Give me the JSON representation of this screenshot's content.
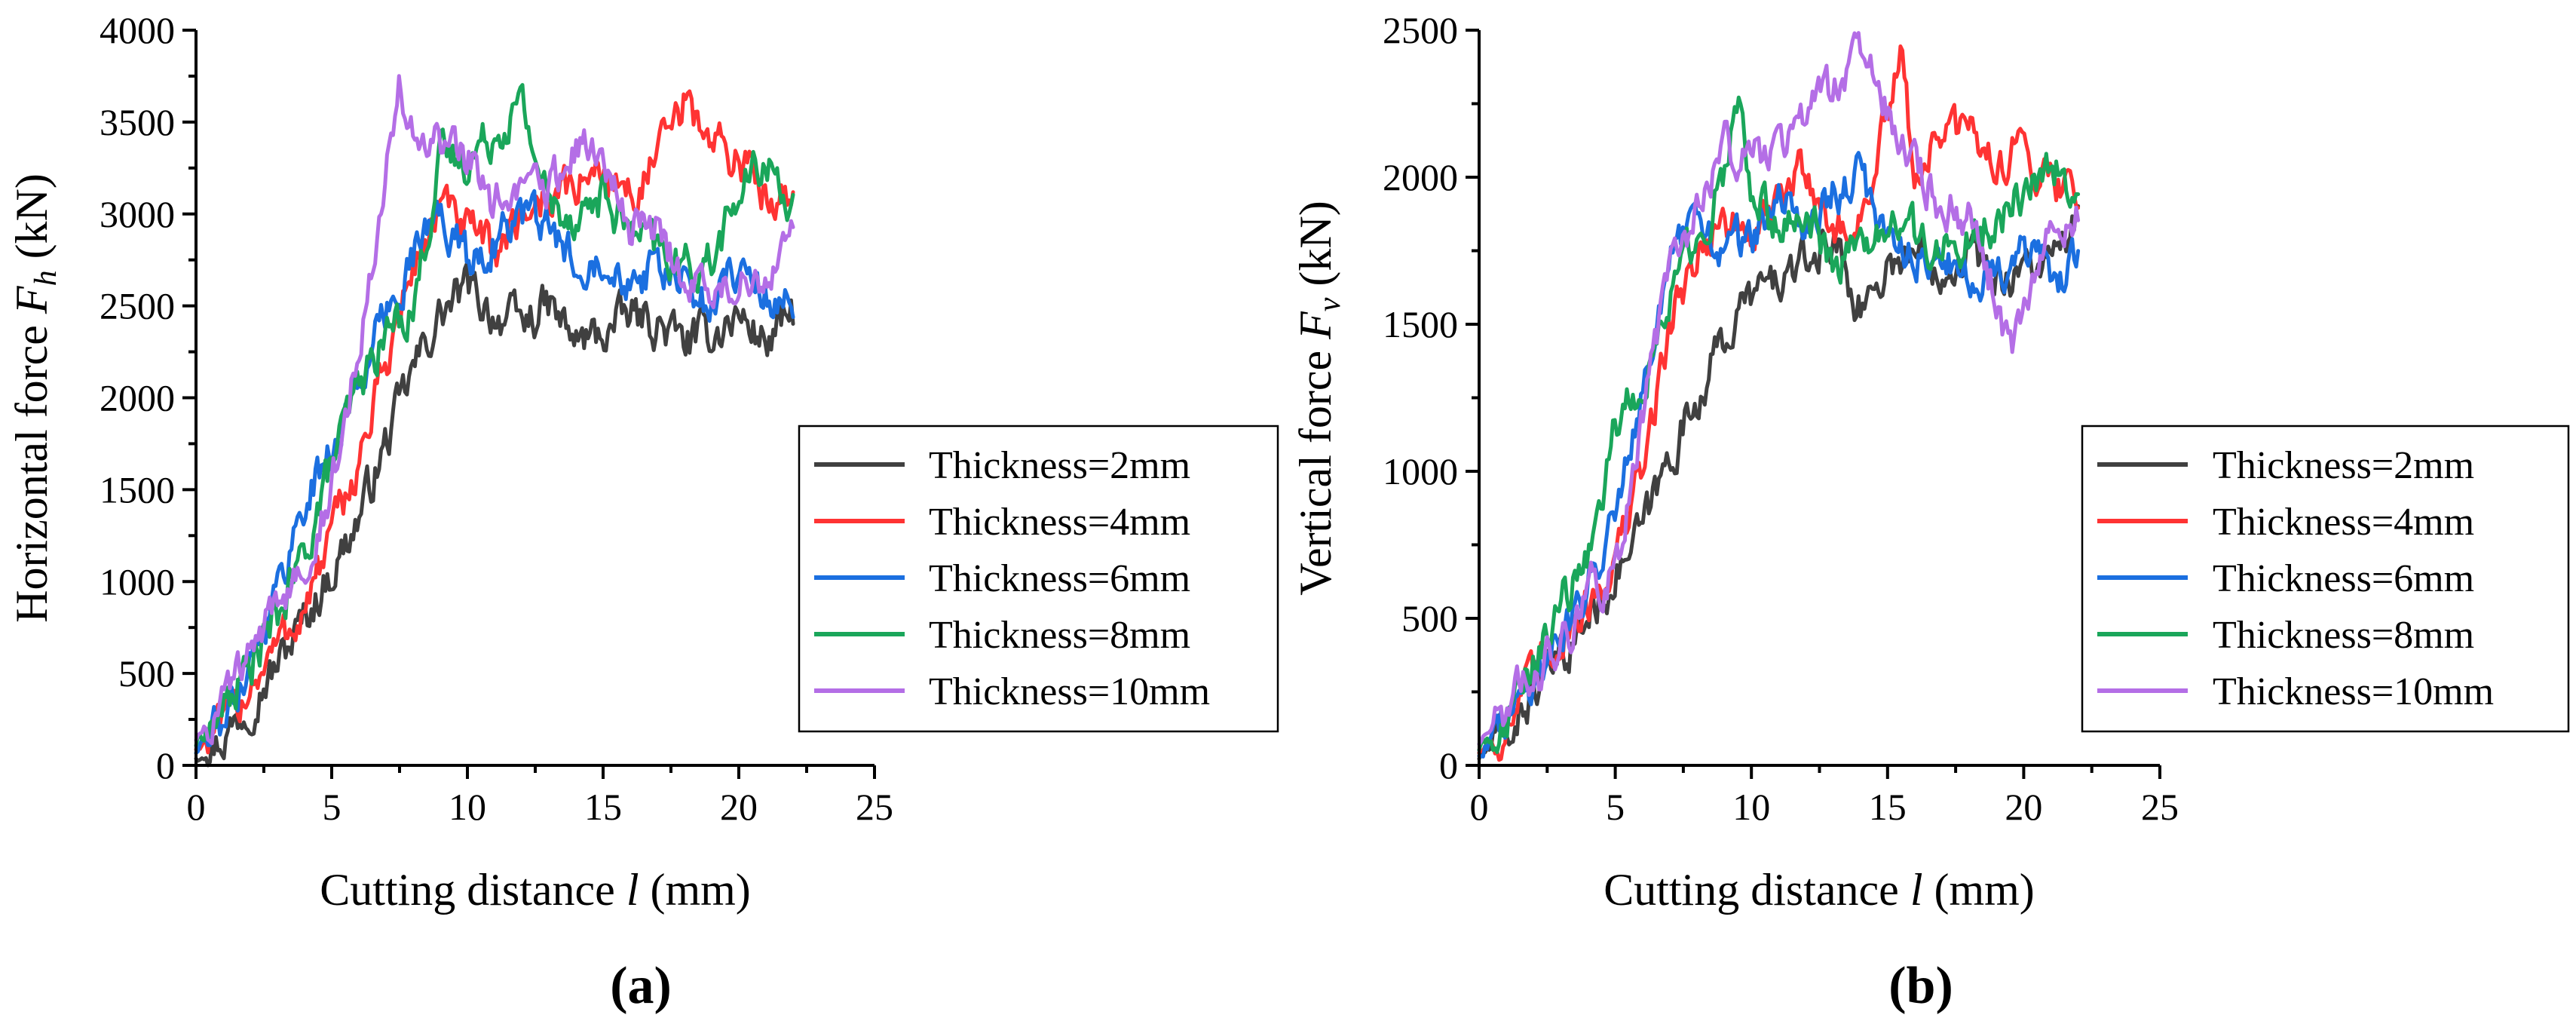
{
  "chart_data": [
    {
      "type": "line",
      "panel_label": "(a)",
      "xlabel": "Cutting distance l (mm)",
      "xlabel_parts": [
        "Cutting distance ",
        "l",
        " (mm)"
      ],
      "ylabel": "Horizontal force F_h (kN)",
      "ylabel_parts": [
        "Horizontal force ",
        "F",
        "h",
        " (kN)"
      ],
      "xlim": [
        0,
        25
      ],
      "ylim": [
        0,
        4000
      ],
      "xticks": [
        0,
        5,
        10,
        15,
        20,
        25
      ],
      "yticks": [
        0,
        500,
        1000,
        1500,
        2000,
        2500,
        3000,
        3500,
        4000
      ],
      "legend_position": "center-right",
      "series": [
        {
          "name": "Thickness=2mm",
          "color": "#404040",
          "x": [
            0,
            1,
            2,
            3,
            4,
            5,
            6,
            7,
            8,
            9,
            10,
            11,
            12,
            13,
            14,
            15,
            16,
            17,
            18,
            19,
            20,
            21,
            22
          ],
          "y": [
            50,
            150,
            350,
            550,
            800,
            1050,
            1350,
            1750,
            2150,
            2450,
            2600,
            2450,
            2400,
            2500,
            2300,
            2350,
            2450,
            2400,
            2300,
            2350,
            2450,
            2300,
            2450
          ]
        },
        {
          "name": "Thickness=4mm",
          "color": "#ff3333",
          "x": [
            0,
            1,
            2,
            3,
            4,
            5,
            6,
            7,
            8,
            9,
            10,
            11,
            12,
            13,
            14,
            15,
            16,
            17,
            18,
            19,
            20,
            21,
            22
          ],
          "y": [
            100,
            200,
            450,
            650,
            850,
            1250,
            1650,
            2200,
            2700,
            3050,
            2900,
            2800,
            3000,
            3100,
            3150,
            3250,
            3100,
            3300,
            3600,
            3400,
            3300,
            3100,
            3150
          ]
        },
        {
          "name": "Thickness=6mm",
          "color": "#1b6fe0",
          "x": [
            0,
            1,
            2,
            3,
            4,
            5,
            6,
            7,
            8,
            9,
            10,
            11,
            12,
            13,
            14,
            15,
            16,
            17,
            18,
            19,
            20,
            21,
            22
          ],
          "y": [
            80,
            250,
            600,
            950,
            1450,
            1700,
            2100,
            2450,
            2800,
            3000,
            2750,
            2850,
            3000,
            2900,
            2750,
            2800,
            2650,
            2700,
            2600,
            2500,
            2750,
            2550,
            2500
          ]
        },
        {
          "name": "Thickness=8mm",
          "color": "#1aa65a",
          "x": [
            0,
            1,
            2,
            3,
            4,
            5,
            6,
            7,
            8,
            9,
            10,
            11,
            12,
            13,
            14,
            15,
            16,
            17,
            18,
            19,
            20,
            21,
            22
          ],
          "y": [
            120,
            300,
            550,
            800,
            1150,
            1650,
            2050,
            2350,
            2500,
            3300,
            3300,
            3450,
            3600,
            3050,
            3000,
            3100,
            2900,
            2800,
            2700,
            2750,
            3100,
            3300,
            3050
          ]
        },
        {
          "name": "Thickness=10mm",
          "color": "#b46ee6",
          "x": [
            0,
            1,
            2,
            3,
            4,
            5,
            6,
            7,
            7.5,
            8,
            9,
            10,
            11,
            12,
            13,
            14,
            15,
            16,
            17,
            18,
            19,
            20,
            21,
            22
          ],
          "y": [
            150,
            350,
            600,
            850,
            1150,
            1500,
            2300,
            3300,
            3700,
            3400,
            3350,
            3300,
            3050,
            3100,
            3150,
            3400,
            3250,
            2950,
            2900,
            2650,
            2550,
            2600,
            2700,
            2900
          ]
        }
      ]
    },
    {
      "type": "line",
      "panel_label": "(b)",
      "xlabel": "Cutting distance l (mm)",
      "xlabel_parts": [
        "Cutting distance ",
        "l",
        " (mm)"
      ],
      "ylabel": "Vertical force F_v (kN)",
      "ylabel_parts": [
        "Vertical force ",
        "F",
        "v",
        " (kN)"
      ],
      "xlim": [
        0,
        25
      ],
      "ylim": [
        0,
        2500
      ],
      "xticks": [
        0,
        5,
        10,
        15,
        20,
        25
      ],
      "yticks": [
        0,
        500,
        1000,
        1500,
        2000,
        2500
      ],
      "legend_position": "center-right",
      "series": [
        {
          "name": "Thickness=2mm",
          "color": "#404040",
          "x": [
            0,
            1,
            2,
            3,
            4,
            5,
            6,
            7,
            8,
            9,
            10,
            11,
            12,
            13,
            14,
            15,
            16,
            17,
            18,
            19,
            20,
            21,
            22
          ],
          "y": [
            30,
            100,
            250,
            350,
            500,
            650,
            800,
            1050,
            1250,
            1450,
            1600,
            1650,
            1700,
            1800,
            1550,
            1700,
            1750,
            1700,
            1750,
            1650,
            1700,
            1700,
            1850
          ]
        },
        {
          "name": "Thickness=4mm",
          "color": "#ff3333",
          "x": [
            0,
            1,
            2,
            3,
            4,
            5,
            6,
            7,
            8,
            9,
            10,
            11,
            12,
            13,
            14,
            15,
            15.5,
            16,
            17,
            18,
            19,
            20,
            21,
            22
          ],
          "y": [
            50,
            120,
            300,
            450,
            550,
            700,
            1000,
            1500,
            1750,
            1850,
            1800,
            1900,
            2050,
            1800,
            1850,
            2200,
            2400,
            2000,
            2150,
            2150,
            2050,
            2100,
            2000,
            1950
          ]
        },
        {
          "name": "Thickness=6mm",
          "color": "#1b6fe0",
          "x": [
            0,
            1,
            2,
            3,
            4,
            5,
            6,
            7,
            8,
            9,
            10,
            11,
            12,
            13,
            14,
            15,
            16,
            17,
            18,
            19,
            20,
            21,
            22
          ],
          "y": [
            40,
            150,
            300,
            450,
            600,
            900,
            1300,
            1700,
            1850,
            1750,
            1800,
            1900,
            1850,
            1950,
            2000,
            1800,
            1750,
            1700,
            1650,
            1700,
            1750,
            1650,
            1700
          ]
        },
        {
          "name": "Thickness=8mm",
          "color": "#1aa65a",
          "x": [
            0,
            1,
            2,
            3,
            4,
            5,
            6,
            7,
            8,
            9,
            9.5,
            10,
            11,
            12,
            13,
            14,
            15,
            16,
            17,
            18,
            19,
            20,
            21,
            22
          ],
          "y": [
            60,
            150,
            350,
            550,
            700,
            1150,
            1300,
            1600,
            1800,
            2000,
            2300,
            1900,
            1850,
            1900,
            1700,
            1750,
            1850,
            1800,
            1750,
            1800,
            1850,
            1950,
            2050,
            1950
          ]
        },
        {
          "name": "Thickness=10mm",
          "color": "#b46ee6",
          "x": [
            0,
            1,
            2,
            3,
            4,
            5,
            6,
            7,
            8,
            9,
            10,
            11,
            12,
            13,
            14,
            15,
            16,
            17,
            18,
            19,
            19.5,
            20,
            21,
            22
          ],
          "y": [
            80,
            200,
            300,
            400,
            600,
            650,
            1200,
            1700,
            1900,
            2100,
            2050,
            2100,
            2200,
            2300,
            2450,
            2200,
            2050,
            1900,
            1850,
            1600,
            1400,
            1550,
            1800,
            1900
          ]
        }
      ]
    }
  ]
}
